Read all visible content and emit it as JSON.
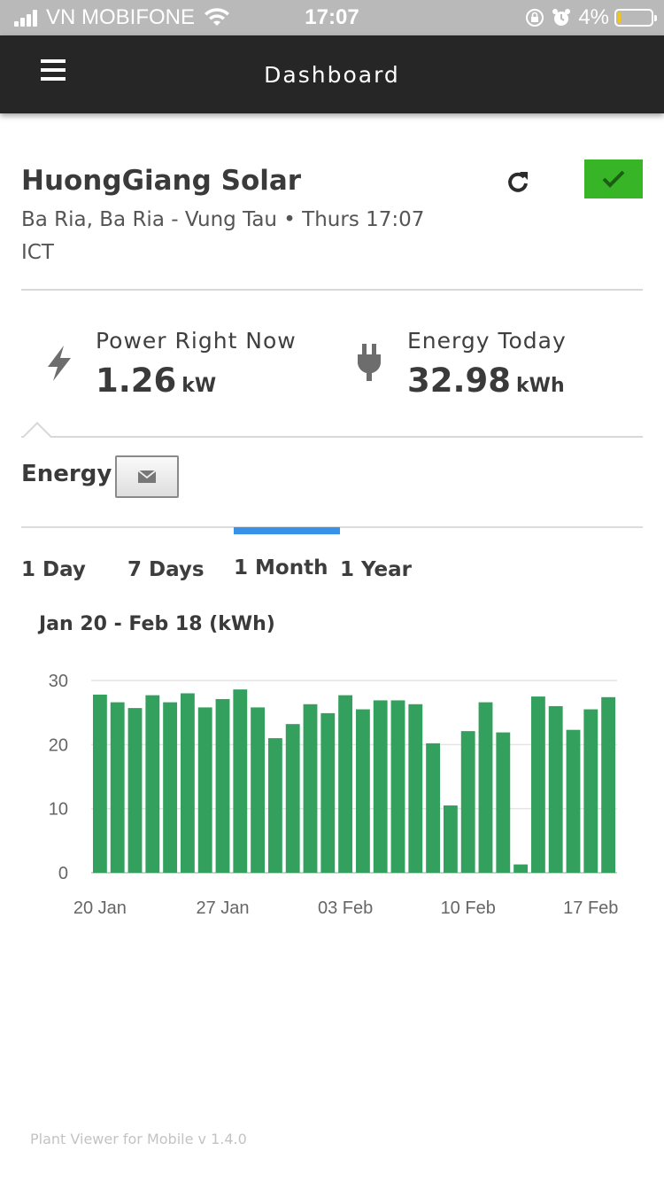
{
  "status_bar": {
    "carrier": "VN MOBIFONE",
    "time": "17:07",
    "battery": "4%",
    "battery_level": 0.04
  },
  "nav": {
    "title": "Dashboard"
  },
  "plant": {
    "name": "HuongGiang Solar",
    "location": "Ba Ria, Ba Ria - Vung Tau • Thurs 17:07 ICT",
    "status_color": "#37b527"
  },
  "metrics": {
    "power": {
      "label": "Power Right Now",
      "value": "1.26",
      "unit": "kW"
    },
    "energy": {
      "label": "Energy Today",
      "value": "32.98",
      "unit": "kWh"
    }
  },
  "energy_section": {
    "title": "Energy"
  },
  "tabs": [
    {
      "label": "1 Day",
      "active": false
    },
    {
      "label": "7 Days",
      "active": false
    },
    {
      "label": "1 Month",
      "active": true
    },
    {
      "label": "1 Year",
      "active": false
    }
  ],
  "range_title": "Jan 20 - Feb 18 (kWh)",
  "chart_data": {
    "type": "bar",
    "title": "Jan 20 - Feb 18 (kWh)",
    "xlabel": "",
    "ylabel": "",
    "ylim": [
      0,
      30
    ],
    "y_ticks": [
      "0",
      "10",
      "20",
      "30"
    ],
    "x_tick_labels": [
      "20 Jan",
      "27 Jan",
      "03 Feb",
      "10 Feb",
      "17 Feb"
    ],
    "grid": true,
    "bar_color": "#34a05d",
    "categories": [
      "Jan 20",
      "Jan 21",
      "Jan 22",
      "Jan 23",
      "Jan 24",
      "Jan 25",
      "Jan 26",
      "Jan 27",
      "Jan 28",
      "Jan 29",
      "Jan 30",
      "Jan 31",
      "Feb 01",
      "Feb 02",
      "Feb 03",
      "Feb 04",
      "Feb 05",
      "Feb 06",
      "Feb 07",
      "Feb 08",
      "Feb 09",
      "Feb 10",
      "Feb 11",
      "Feb 12",
      "Feb 13",
      "Feb 14",
      "Feb 15",
      "Feb 16",
      "Feb 17",
      "Feb 18"
    ],
    "values": [
      27.8,
      26.6,
      25.7,
      27.7,
      26.6,
      28.0,
      25.8,
      27.1,
      28.6,
      25.8,
      21.0,
      23.2,
      26.3,
      24.9,
      27.7,
      25.5,
      26.9,
      26.9,
      26.3,
      20.2,
      10.5,
      22.1,
      26.6,
      21.9,
      1.3,
      27.5,
      26.0,
      22.3,
      25.5,
      27.4
    ]
  },
  "footer": "Plant Viewer for Mobile v 1.4.0"
}
